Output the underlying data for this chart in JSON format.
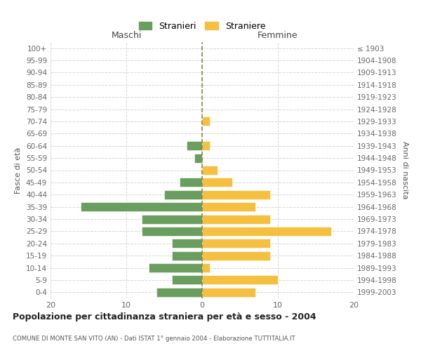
{
  "age_groups": [
    "0-4",
    "5-9",
    "10-14",
    "15-19",
    "20-24",
    "25-29",
    "30-34",
    "35-39",
    "40-44",
    "45-49",
    "50-54",
    "55-59",
    "60-64",
    "65-69",
    "70-74",
    "75-79",
    "80-84",
    "85-89",
    "90-94",
    "95-99",
    "100+"
  ],
  "birth_years": [
    "1999-2003",
    "1994-1998",
    "1989-1993",
    "1984-1988",
    "1979-1983",
    "1974-1978",
    "1969-1973",
    "1964-1968",
    "1959-1963",
    "1954-1958",
    "1949-1953",
    "1944-1948",
    "1939-1943",
    "1934-1938",
    "1929-1933",
    "1924-1928",
    "1919-1923",
    "1914-1918",
    "1909-1913",
    "1904-1908",
    "≤ 1903"
  ],
  "maschi": [
    6,
    4,
    7,
    4,
    4,
    8,
    8,
    16,
    5,
    3,
    0,
    1,
    2,
    0,
    0,
    0,
    0,
    0,
    0,
    0,
    0
  ],
  "femmine": [
    7,
    10,
    1,
    9,
    9,
    17,
    9,
    7,
    9,
    4,
    2,
    0,
    1,
    0,
    1,
    0,
    0,
    0,
    0,
    0,
    0
  ],
  "color_maschi": "#6a9e5e",
  "color_femmine": "#f5c040",
  "title": "Popolazione per cittadinanza straniera per età e sesso - 2004",
  "subtitle": "COMUNE DI MONTE SAN VITO (AN) - Dati ISTAT 1° gennaio 2004 - Elaborazione TUTTITALIA.IT",
  "xlabel_left": "Maschi",
  "xlabel_right": "Femmine",
  "ylabel_left": "Fasce di età",
  "ylabel_right": "Anni di nascita",
  "legend_male": "Stranieri",
  "legend_female": "Straniere",
  "xlim": 20,
  "background_color": "#ffffff",
  "grid_color": "#cccccc"
}
